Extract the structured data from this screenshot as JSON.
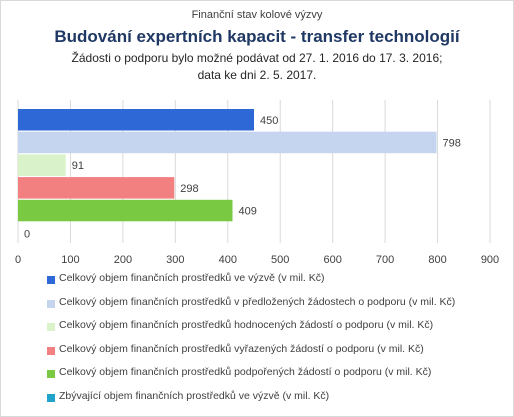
{
  "header": {
    "supertitle": "Finanční stav kolové výzvy",
    "title": "Budování expertních kapacit - transfer technologií",
    "subtitle_line1": "Žádosti o podporu bylo možné  podávat od 27. 1. 2016 do 17. 3. 2016;",
    "subtitle_line2": "data ke dni 2. 5. 2017."
  },
  "chart_data": {
    "type": "bar",
    "orientation": "horizontal",
    "xlim": [
      0,
      900
    ],
    "x_ticks": [
      0,
      100,
      200,
      300,
      400,
      500,
      600,
      700,
      800,
      900
    ],
    "grid": "vertical",
    "legend_placement": "bottom",
    "series": [
      {
        "name": "Celkový objem finančních prostředků ve výzvě (v mil. Kč)",
        "value": 450,
        "label": "450",
        "color": "#2e67d6"
      },
      {
        "name": "Celkový objem finančních prostředků v předložených žádostech o podporu (v mil. Kč)",
        "value": 798,
        "label": "798",
        "color": "#c5d4ef"
      },
      {
        "name": "Celkový objem finančních prostředků hodnocených žádostí o podporu (v mil. Kč)",
        "value": 91,
        "label": "91",
        "color": "#d9f2c9"
      },
      {
        "name": "Celkový objem finančních prostředků vyřazených žádostí o podporu (v mil. Kč)",
        "value": 298,
        "label": "298",
        "color": "#f28080"
      },
      {
        "name": "Celkový objem finančních prostředků podpořených žádostí o podporu (v mil. Kč)",
        "value": 409,
        "label": "409",
        "color": "#7ac943"
      },
      {
        "name": "Zbývající objem finančních prostředků ve výzvě (v mil. Kč)",
        "value": 0,
        "label": "0",
        "color": "#1fa3c9"
      }
    ]
  }
}
